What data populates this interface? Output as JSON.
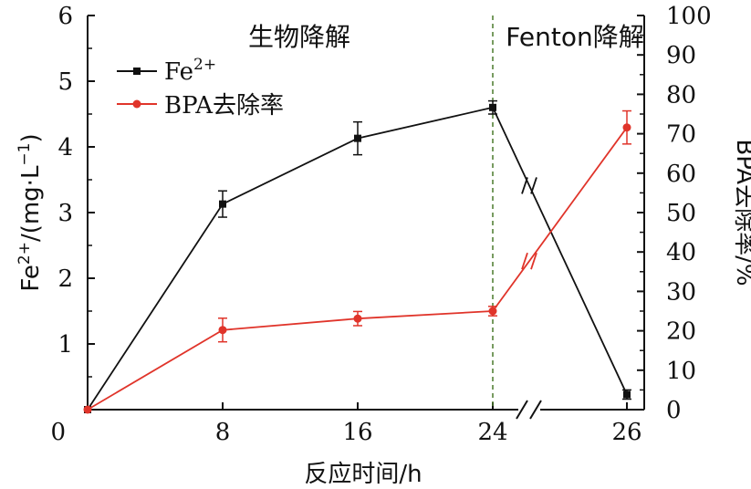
{
  "chart_data": {
    "type": "line",
    "xlabel": "反应时间/h",
    "ylabel_left_main": "Fe",
    "ylabel_left_sup": "2+",
    "ylabel_left_unit_pre": "/(mg·L",
    "ylabel_left_unit_sup": "−1",
    "ylabel_left_unit_post": ")",
    "ylabel_right": "BPA去除率/%",
    "x_ticks": [
      "0",
      "8",
      "16",
      "24",
      "26"
    ],
    "y_left_ticks": [
      "0",
      "1",
      "2",
      "3",
      "4",
      "5",
      "6"
    ],
    "y_right_ticks": [
      "0",
      "10",
      "20",
      "30",
      "40",
      "50",
      "60",
      "70",
      "80",
      "90",
      "100"
    ],
    "y_left_range": [
      0,
      6
    ],
    "y_right_range": [
      0,
      100
    ],
    "x_axis_break": true,
    "regions": [
      {
        "label": "生物降解",
        "x_from": 0,
        "x_to": 24
      },
      {
        "label": "Fenton降解",
        "x_from": 24,
        "x_to": 26
      }
    ],
    "divider_x": 24,
    "legend_placement": "top-left",
    "series": [
      {
        "name": "Fe",
        "name_sup": "2+",
        "axis": "left",
        "color": "#111111",
        "marker": "square",
        "x": [
          0,
          8,
          16,
          24,
          26
        ],
        "y": [
          0,
          3.13,
          4.13,
          4.6,
          0.23
        ],
        "err": [
          0,
          0.2,
          0.25,
          0.1,
          0.07
        ]
      },
      {
        "name": "BPA去除率",
        "axis": "right",
        "color": "#e0342a",
        "marker": "circle",
        "x": [
          0,
          8,
          16,
          24,
          26
        ],
        "y": [
          0,
          20.2,
          23.1,
          25.0,
          71.6
        ],
        "err": [
          0,
          3.0,
          1.8,
          1.2,
          4.2
        ]
      }
    ]
  }
}
